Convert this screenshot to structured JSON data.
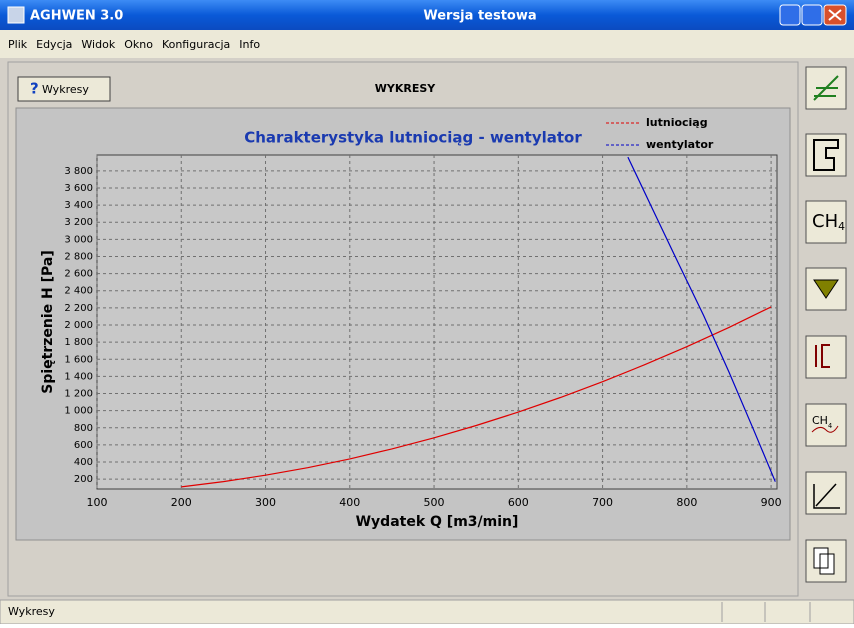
{
  "window": {
    "app": "AGHWEN 3.0",
    "caption": "Wersja testowa",
    "menu": [
      "Plik",
      "Edycja",
      "Widok",
      "Okno",
      "Konfiguracja",
      "Info"
    ],
    "button": "Wykresy",
    "header": "WYKRESY",
    "status": "Wykresy",
    "icons": [
      {
        "label": "CH",
        "sub": "4"
      },
      {
        "label": "CH",
        "sub": "4"
      }
    ]
  },
  "chart_data": {
    "type": "line",
    "title": "Charakterystyka lutniociąg - wentylator",
    "xlabel": "Wydatek  Q  [m3/min]",
    "ylabel": "Spiętrzenie  H  [Pa]",
    "series": [
      {
        "name": "lutniociąg",
        "color": "#e00000",
        "x": [
          200,
          250,
          300,
          350,
          400,
          450,
          500,
          550,
          600,
          650,
          700,
          750,
          800,
          850,
          900
        ],
        "values": [
          109,
          171,
          246,
          334,
          437,
          553,
          683,
          826,
          983,
          1153,
          1338,
          1536,
          1747,
          1972,
          2211
        ]
      },
      {
        "name": "wentylator",
        "color": "#0000c8",
        "x": [
          730,
          760,
          790,
          820,
          850,
          880,
          905
        ],
        "values": [
          3960,
          3340,
          2720,
          2110,
          1450,
          760,
          170
        ]
      }
    ],
    "xlim": [
      100,
      907
    ],
    "ylim": [
      85,
      3985
    ],
    "xticks": [
      100,
      200,
      300,
      400,
      500,
      600,
      700,
      800,
      900
    ],
    "yticks": [
      200,
      400,
      600,
      800,
      {
        "value": 1000,
        "label": "1 000"
      },
      {
        "value": 1200,
        "label": "1 200"
      },
      {
        "value": 1400,
        "label": "1 400"
      },
      {
        "value": 1600,
        "label": "1 600"
      },
      {
        "value": 1800,
        "label": "1 800"
      },
      {
        "value": 2000,
        "label": "2 000"
      },
      {
        "value": 2200,
        "label": "2 200"
      },
      {
        "value": 2400,
        "label": "2 400"
      },
      {
        "value": 2600,
        "label": "2 600"
      },
      {
        "value": 2800,
        "label": "2 800"
      },
      {
        "value": 3000,
        "label": "3 000"
      },
      {
        "value": 3200,
        "label": "3 200"
      },
      {
        "value": 3400,
        "label": "3 400"
      },
      {
        "value": 3600,
        "label": "3 600"
      },
      {
        "value": 3800,
        "label": "3 800"
      }
    ],
    "grid": true
  }
}
